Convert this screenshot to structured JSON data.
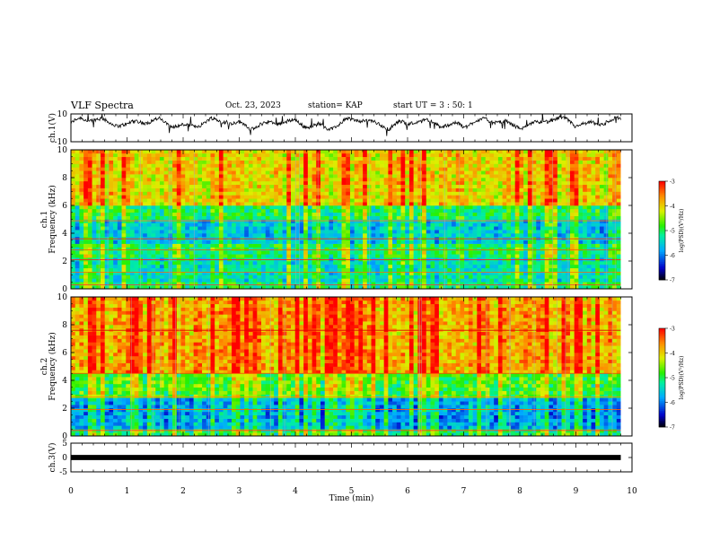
{
  "header": {
    "title": "VLF Spectra",
    "date": "Oct. 23, 2023",
    "station": "station= KAP",
    "start": "start  UT =   3 : 50: 1"
  },
  "chart_data": [
    {
      "type": "line",
      "panel": "ch1-waveform",
      "ylabel": "ch.1(V)",
      "ylim": [
        -10,
        10
      ],
      "yticks": [
        "10",
        "-10"
      ],
      "xlim": [
        0,
        10
      ],
      "values_estimate": "noisy waveform, mostly between -3 and 8 V"
    },
    {
      "type": "heatmap",
      "panel": "ch1-spectrogram",
      "ylabel_line1": "ch.1",
      "ylabel_line2": "Frequency (kHz)",
      "ylim": [
        0,
        10
      ],
      "yticks": [
        "0",
        "2",
        "4",
        "6",
        "8",
        "10"
      ],
      "xlim": [
        0,
        9.8
      ],
      "colorbar": {
        "label": "log(PSD)(V²/Hz)",
        "range": [
          -7,
          -3
        ],
        "ticks": [
          "-3",
          "-4",
          "-5",
          "-6",
          "-7"
        ]
      },
      "bands_khz": [
        {
          "from": 0,
          "to": 0.6,
          "level": -5.0
        },
        {
          "from": 0.6,
          "to": 2.2,
          "level": -5.3
        },
        {
          "from": 2.2,
          "to": 3.2,
          "level": -5.0
        },
        {
          "from": 3.2,
          "to": 5.0,
          "level": -5.5
        },
        {
          "from": 5.0,
          "to": 6.0,
          "level": -5.0
        },
        {
          "from": 6.0,
          "to": 10,
          "level": -4.0
        }
      ]
    },
    {
      "type": "heatmap",
      "panel": "ch2-spectrogram",
      "ylabel_line1": "ch.2",
      "ylabel_line2": "Frequency (kHz)",
      "ylim": [
        0,
        10
      ],
      "yticks": [
        "0",
        "2",
        "4",
        "6",
        "8",
        "10"
      ],
      "xlim": [
        0,
        9.8
      ],
      "colorbar": {
        "label": "log(PSD)(V²/Hz)",
        "range": [
          -7,
          -3
        ],
        "ticks": [
          "-3",
          "-4",
          "-5",
          "-6",
          "-7"
        ]
      },
      "bands_khz": [
        {
          "from": 0,
          "to": 0.5,
          "level": -5.0
        },
        {
          "from": 0.5,
          "to": 2.8,
          "level": -5.8
        },
        {
          "from": 2.8,
          "to": 4.5,
          "level": -4.8
        },
        {
          "from": 4.5,
          "to": 10,
          "level": -3.8
        }
      ]
    },
    {
      "type": "line",
      "panel": "ch3-waveform",
      "ylabel": "ch.3(V)",
      "ylim": [
        -5,
        5
      ],
      "yticks": [
        "5",
        "0",
        "-5"
      ],
      "xlim": [
        0,
        10
      ],
      "xlabel": "Time (min)",
      "xticks": [
        "0",
        "1",
        "2",
        "3",
        "4",
        "5",
        "6",
        "7",
        "8",
        "9",
        "10"
      ],
      "values_estimate": "flat thick trace near 0 V"
    }
  ]
}
